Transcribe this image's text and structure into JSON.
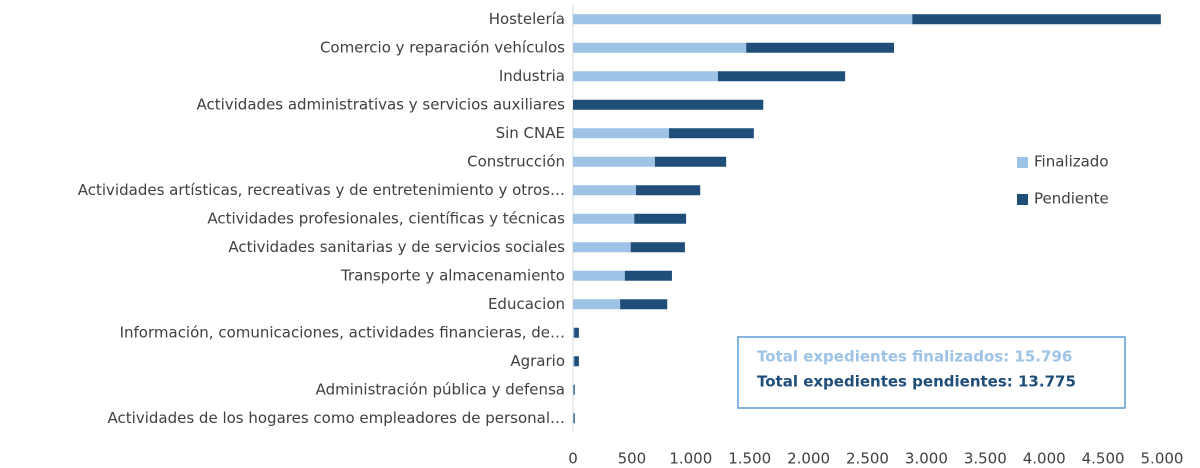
{
  "chart_data": {
    "type": "stacked_barh",
    "categories": [
      "Hostelería",
      "Comercio y reparación vehículos",
      "Industria",
      "Actividades administrativas y servicios auxiliares",
      "Sin CNAE",
      "Construcción",
      "Actividades artísticas, recreativas y de entretenimiento y otros…",
      "Actividades profesionales, científicas y técnicas",
      "Actividades sanitarias y de servicios sociales",
      "Transporte y almacenamiento",
      "Educacion",
      "Información, comunicaciones, actividades financieras, de…",
      "Agrario",
      "Administración pública y defensa",
      "Actividades de los hogares como empleadores de personal…"
    ],
    "series": [
      {
        "name": "Finalizado",
        "color": "#9dc3e6",
        "values": [
          2880,
          1470,
          1230,
          0,
          815,
          695,
          535,
          520,
          490,
          440,
          400,
          10,
          10,
          5,
          5
        ]
      },
      {
        "name": "Pendiente",
        "color": "#1f4e79",
        "values": [
          2110,
          1255,
          1080,
          1615,
          720,
          605,
          545,
          440,
          460,
          400,
          400,
          40,
          40,
          10,
          10
        ]
      }
    ],
    "xlim": [
      0,
      5000
    ],
    "xticks": [
      0,
      500,
      {
        "value": 1000,
        "label": "1.000"
      },
      {
        "value": 1500,
        "label": "1.500"
      },
      {
        "value": 2000,
        "label": "2.000"
      },
      {
        "value": 2500,
        "label": "2.500"
      },
      {
        "value": 3000,
        "label": "3.000"
      },
      {
        "value": 3500,
        "label": "3.500"
      },
      {
        "value": 4000,
        "label": "4.000"
      },
      {
        "value": 4500,
        "label": "4.500"
      },
      {
        "value": 5000,
        "label": "5.000"
      }
    ],
    "legend": "right",
    "annotations": [
      "Total expedientes finalizados:  15.796",
      "Total expedientes pendientes: 13.775"
    ]
  }
}
